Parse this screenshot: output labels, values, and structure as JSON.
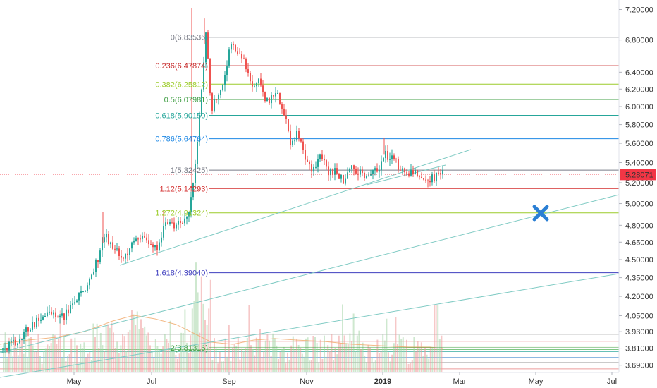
{
  "chart_data": {
    "type": "candlestick",
    "title": "",
    "xlabel": "",
    "ylabel": "",
    "y_scale": "log",
    "ylim": [
      3.64,
      7.33
    ],
    "grid": false,
    "x_ticks": [
      "May",
      "Jul",
      "Sep",
      "Nov",
      "2019",
      "Mar",
      "May",
      "Jul"
    ],
    "y_ticks": [
      7.2,
      6.8,
      6.4,
      6.2,
      6.0,
      5.8,
      5.6,
      5.4,
      5.2,
      5.0,
      4.8,
      4.65,
      4.5,
      4.35,
      4.2,
      4.05,
      3.93,
      3.81,
      3.69
    ],
    "y_tick_labels": [
      "7.20000",
      "6.80000",
      "6.40000",
      "6.20000",
      "6.00000",
      "5.80000",
      "5.60000",
      "5.40000",
      "5.20000",
      "5.00000",
      "4.80000",
      "4.65000",
      "4.50000",
      "4.35000",
      "4.20000",
      "4.05000",
      "3.93000",
      "3.81000",
      "3.69000"
    ],
    "last_price": {
      "value": 5.28071,
      "label": "5.28071",
      "color": "#f23645"
    },
    "fib_levels": [
      {
        "label": "0(6.83536)",
        "value": 6.83536,
        "color": "#787b86"
      },
      {
        "label": "0.236(6.47874)",
        "value": 6.47874,
        "color": "#c62828"
      },
      {
        "label": "0.382(6.25812)",
        "value": 6.25812,
        "color": "#9ccc2a"
      },
      {
        "label": "0.5(6.07981)",
        "value": 6.07981,
        "color": "#43a047"
      },
      {
        "label": "0.618(5.90150)",
        "value": 5.9015,
        "color": "#26a69a"
      },
      {
        "label": "0.786(5.64764)",
        "value": 5.64764,
        "color": "#1e88e5"
      },
      {
        "label": "1(5.32425)",
        "value": 5.32425,
        "color": "#787b86"
      },
      {
        "label": "1.12(5.14293)",
        "value": 5.14293,
        "color": "#d32f2f"
      },
      {
        "label": "1.272(4.91324)",
        "value": 4.91324,
        "color": "#9ccc2a"
      },
      {
        "label": "1.618(4.39040)",
        "value": 4.3904,
        "color": "#3f3fbf"
      },
      {
        "label": "2(3.81316)",
        "value": 3.81316,
        "color": "#43a047"
      }
    ],
    "colors": {
      "up": "#26a69a",
      "down": "#ef5350",
      "trendline": "#80cbc4",
      "marker": "#2a7fd4",
      "volume_ma": "#f0a868"
    }
  }
}
